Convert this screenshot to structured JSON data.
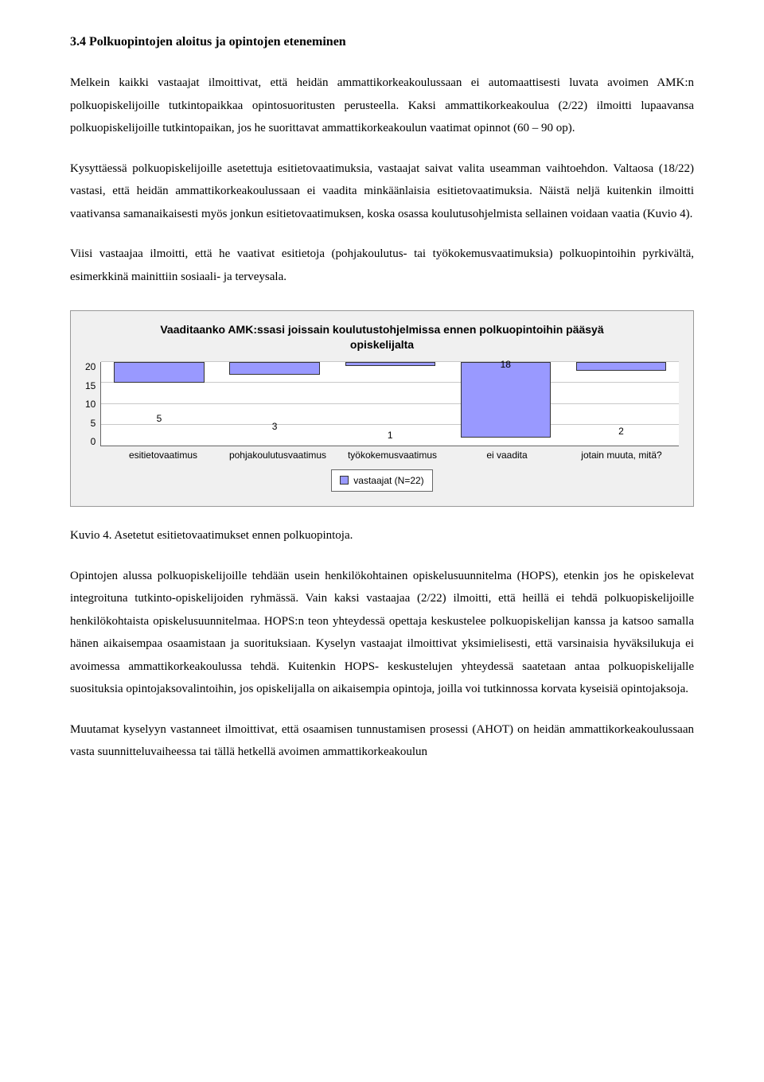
{
  "heading": "3.4 Polkuopintojen aloitus ja opintojen eteneminen",
  "para1": "Melkein kaikki vastaajat ilmoittivat, että heidän ammattikorkeakoulussaan ei automaattisesti luvata avoimen AMK:n polkuopiskelijoille tutkintopaikkaa opintosuoritusten perusteella. Kaksi ammattikorkeakoulua (2/22) ilmoitti lupaavansa polkuopiskelijoille tutkintopaikan, jos he suorittavat ammattikorkeakoulun vaatimat opinnot (60 – 90 op).",
  "para2": "Kysyttäessä polkuopiskelijoille asetettuja esitietovaatimuksia, vastaajat saivat valita useamman vaihtoehdon. Valtaosa (18/22) vastasi, että heidän ammattikorkeakoulussaan ei vaadita minkäänlaisia esitietovaatimuksia. Näistä neljä kuitenkin ilmoitti vaativansa samanaikaisesti myös jonkun esitietovaatimuksen, koska osassa koulutusohjelmista sellainen voidaan vaatia (Kuvio 4).",
  "para3": "Viisi vastaajaa ilmoitti, että he vaativat esitietoja (pohjakoulutus- tai työkokemusvaatimuksia) polkuopintoihin pyrkivältä, esimerkkinä mainittiin sosiaali- ja terveysala.",
  "chart": {
    "type": "bar",
    "title": "Vaaditaanko AMK:ssasi joissain koulutustohjelmissa ennen polkuopintoihin pääsyä opiskelijalta",
    "categories": [
      "esitietovaatimus",
      "pohjakoulutusvaatimus",
      "työkokemusvaatimus",
      "ei vaadita",
      "jotain muuta, mitä?"
    ],
    "values": [
      5,
      3,
      1,
      18,
      2
    ],
    "ylim": [
      0,
      20
    ],
    "yticks": [
      0,
      5,
      10,
      15,
      20
    ],
    "bar_color": "#9999ff",
    "grid_color": "#c8c8c8",
    "plot_bg": "#ffffff",
    "chart_bg": "#f0f0f0",
    "legend_label": "vastaajat (N=22)"
  },
  "caption": "Kuvio 4. Asetetut esitietovaatimukset ennen polkuopintoja.",
  "para4": "Opintojen alussa polkuopiskelijoille tehdään usein henkilökohtainen opiskelusuunnitelma (HOPS), etenkin jos he opiskelevat integroituna tutkinto-opiskelijoiden ryhmässä. Vain kaksi vastaajaa (2/22) ilmoitti, että heillä ei tehdä polkuopiskelijoille henkilökohtaista opiskelusuunnitelmaa. HOPS:n teon yhteydessä opettaja keskustelee polkuopiskelijan kanssa ja katsoo samalla hänen aikaisempaa osaamistaan ja suorituksiaan. Kyselyn vastaajat ilmoittivat yksimielisesti, että varsinaisia hyväksilukuja ei avoimessa ammattikorkeakoulussa tehdä. Kuitenkin HOPS- keskustelujen yhteydessä saatetaan antaa polkuopiskelijalle suosituksia opintojaksovalintoihin, jos opiskelijalla on aikaisempia opintoja, joilla voi tutkinnossa korvata kyseisiä opintojaksoja.",
  "para5": "Muutamat kyselyyn vastanneet ilmoittivat, että osaamisen tunnustamisen prosessi (AHOT) on heidän ammattikorkeakoulussaan vasta suunnitteluvaiheessa tai tällä hetkellä avoimen ammattikorkeakoulun"
}
